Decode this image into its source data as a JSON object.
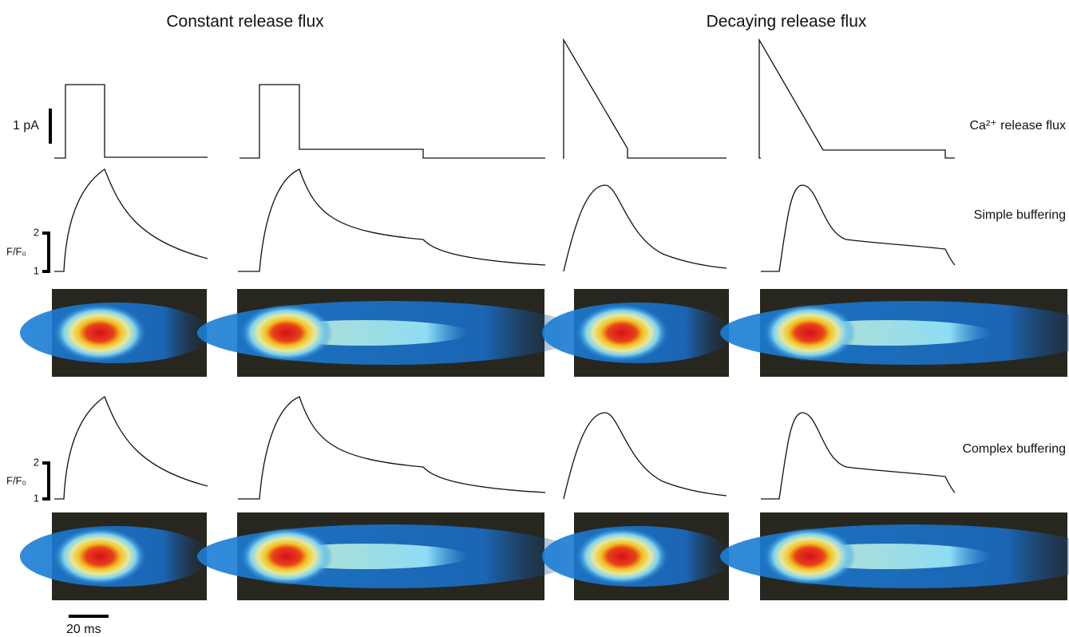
{
  "columns": {
    "constant": "Constant release flux",
    "decaying": "Decaying release flux"
  },
  "row_labels": {
    "flux": "Ca²⁺ release flux",
    "simple": "Simple buffering",
    "complex": "Complex buffering"
  },
  "scale_bars": {
    "current": "1 pA",
    "simple_fluorescence": {
      "top": 2,
      "bottom": 1,
      "label": "F/F₀"
    },
    "complex_fluorescence": {
      "top": 2,
      "bottom": 1,
      "label": "F/F₀"
    },
    "time": "20 ms"
  }
}
